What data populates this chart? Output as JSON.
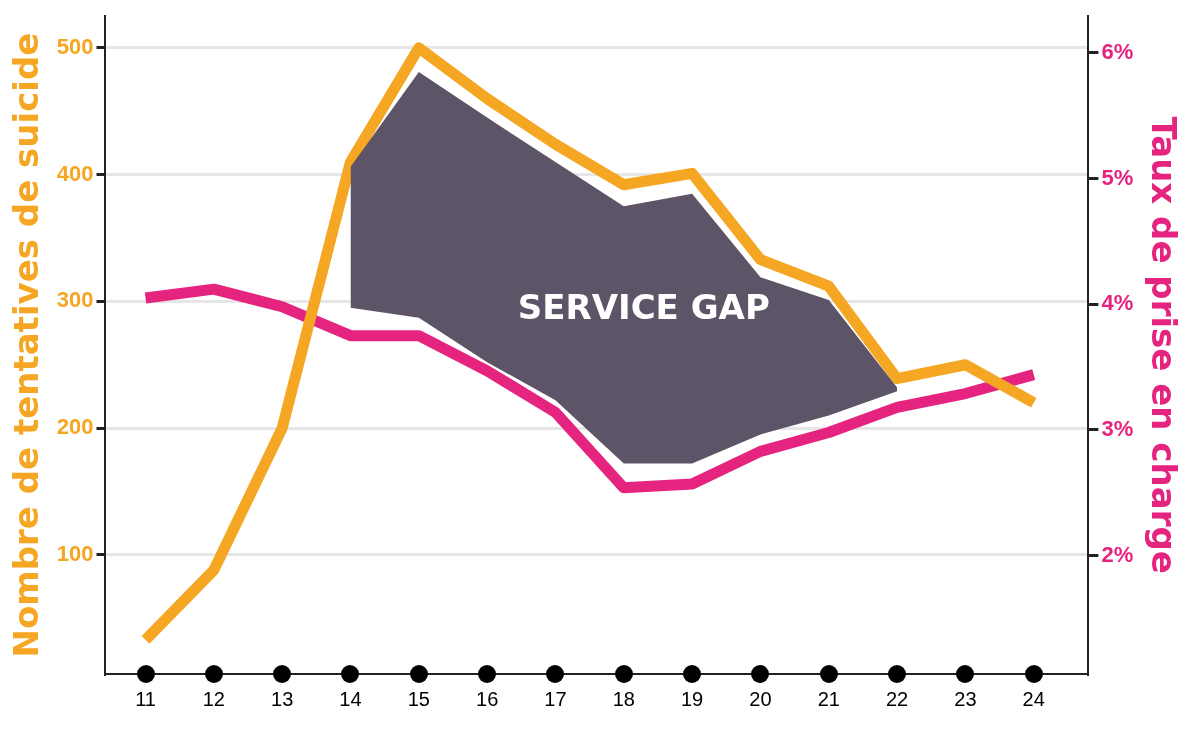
{
  "chart_data": {
    "type": "line",
    "ylabel": "Nombre de tentatives de suicide",
    "y2label": "Taux de prise en charge",
    "x": [
      11,
      12,
      13,
      14,
      15,
      16,
      17,
      18,
      19,
      20,
      21,
      22,
      23,
      24
    ],
    "xlim": [
      10.4,
      24.8
    ],
    "xticks": [
      11,
      12,
      13,
      14,
      15,
      16,
      17,
      18,
      19,
      20,
      21,
      22,
      23,
      24
    ],
    "ylim": [
      6,
      525
    ],
    "yticks": [
      100,
      200,
      300,
      400,
      500
    ],
    "y2lim": [
      1.06,
      6.29
    ],
    "y2ticks": [
      {
        "value": 2,
        "label": "2%"
      },
      {
        "value": 3,
        "label": "3%"
      },
      {
        "value": 4,
        "label": "4%"
      },
      {
        "value": 5,
        "label": "5%"
      },
      {
        "value": 6,
        "label": "6%"
      }
    ],
    "grid": "y",
    "series": [
      {
        "color": "#5e5468",
        "x": [
          14,
          15,
          16,
          17,
          18,
          19,
          20,
          21,
          22
        ],
        "values": [
          null,
          null,
          null,
          null,
          null,
          null,
          null,
          null,
          null
        ],
        "upper": [
          406,
          481,
          445,
          410,
          375,
          385,
          319,
          301,
          232
        ],
        "lower": [
          295,
          287,
          252,
          222,
          172,
          172,
          195,
          210,
          229
        ]
      },
      {
        "color": "#f5a623",
        "values": [
          33,
          88,
          200,
          410,
          500,
          460,
          424,
          392,
          401,
          333,
          312,
          239,
          250,
          220
        ]
      },
      {
        "axis": "y2",
        "color": "#e5247f",
        "values": [
          4.05,
          4.12,
          3.98,
          3.75,
          3.75,
          3.47,
          3.14,
          2.54,
          2.57,
          2.83,
          2.98,
          3.18,
          3.29,
          3.44
        ]
      }
    ],
    "annotations": [
      "SERVICE GAP"
    ]
  }
}
